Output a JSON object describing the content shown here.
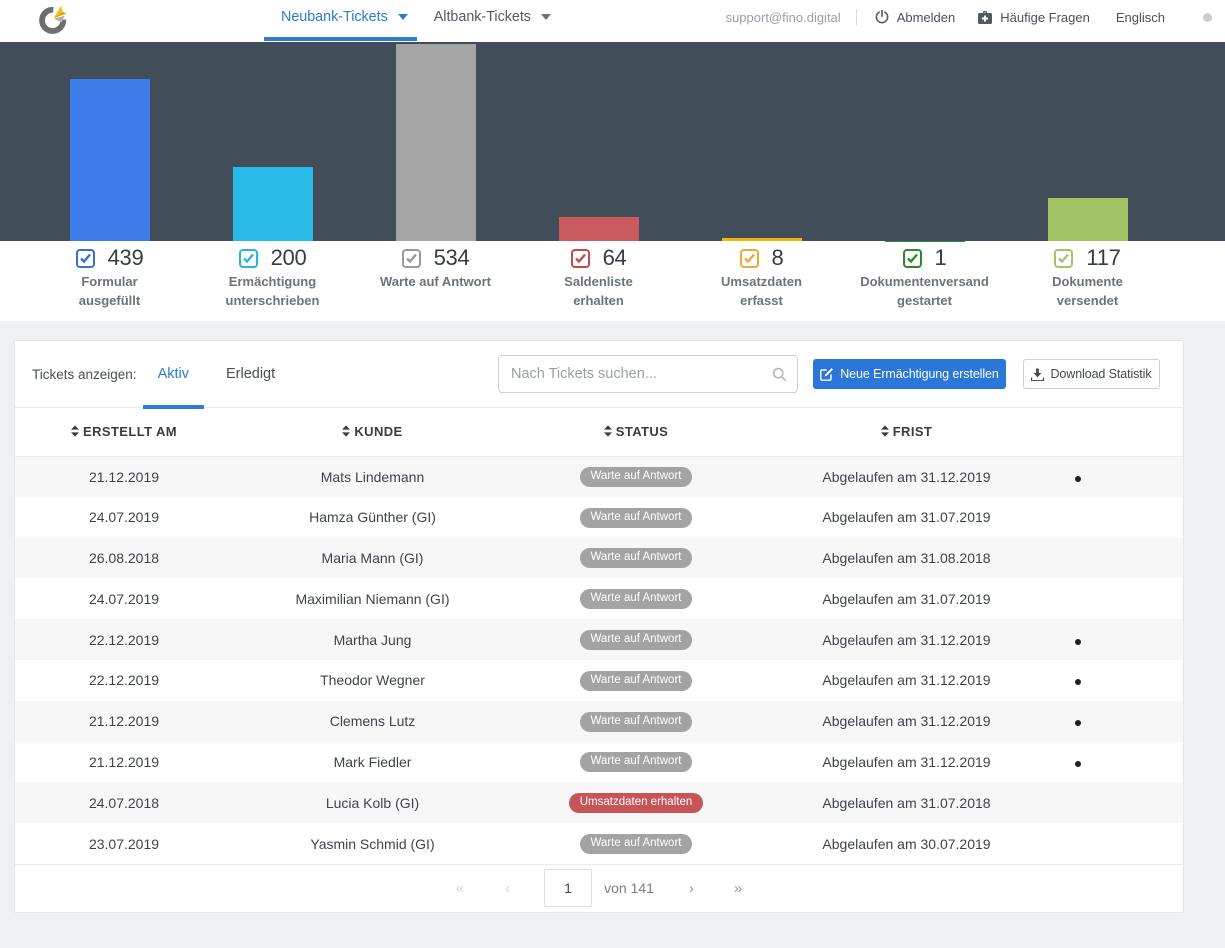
{
  "navbar": {
    "logo": "fino-logo",
    "tabs": [
      {
        "label": "Neubank-Tickets",
        "active": true
      },
      {
        "label": "Altbank-Tickets",
        "active": false
      }
    ],
    "user_email": "support@fino.digital",
    "logout_label": "Abmelden",
    "faq_label": "Häufige Fragen",
    "language_label": "Englisch"
  },
  "chart_data": {
    "type": "bar",
    "title": "",
    "xlabel": "",
    "ylabel": "",
    "ylim": [
      0,
      534
    ],
    "grid": false,
    "background": "#424d5a",
    "categories": [
      "Formular ausgefüllt",
      "Ermächtigung unterschrieben",
      "Warte auf Antwort",
      "Saldenliste erhalten",
      "Umsatzdaten erfasst",
      "Dokumentenversand gestartet",
      "Dokumente versendet"
    ],
    "values": [
      439,
      200,
      534,
      64,
      8,
      1,
      117
    ],
    "colors": [
      "#3e7de9",
      "#29bce8",
      "#a5a5a5",
      "#cb5a5e",
      "#f5b50a",
      "#2e8b37",
      "#a1c262"
    ],
    "legend": [
      {
        "count": "439",
        "lines": [
          "Formular",
          "ausgefüllt"
        ],
        "box_color": "#3a6fd8",
        "checked": true
      },
      {
        "count": "200",
        "lines": [
          "Ermächtigung",
          "unterschrieben"
        ],
        "box_color": "#2ab4e4",
        "checked": true
      },
      {
        "count": "534",
        "lines": [
          "Warte auf Antwort"
        ],
        "box_color": "#9a9a9a",
        "checked": true
      },
      {
        "count": "64",
        "lines": [
          "Saldenliste",
          "erhalten"
        ],
        "box_color": "#c2494f",
        "checked": true
      },
      {
        "count": "8",
        "lines": [
          "Umsatzdaten",
          "erfasst"
        ],
        "box_color": "#eda93c",
        "checked": true
      },
      {
        "count": "1",
        "lines": [
          "Dokumentenversand",
          "gestartet"
        ],
        "box_color": "#2c8a2c",
        "checked": true
      },
      {
        "count": "117",
        "lines": [
          "Dokumente",
          "versendet"
        ],
        "box_color": "#a4c36a",
        "checked": true
      }
    ]
  },
  "toolbar": {
    "label": "Tickets anzeigen:",
    "tabs": [
      {
        "label": "Aktiv",
        "active": true
      },
      {
        "label": "Erledigt",
        "active": false
      }
    ],
    "search_placeholder": "Nach Tickets suchen...",
    "search_value": "",
    "create_button": "Neue Ermächtigung erstellen",
    "download_button": "Download Statistik"
  },
  "table": {
    "columns": [
      "Erstellt am",
      "Kunde",
      "Status",
      "Frist"
    ],
    "status_colors": {
      "Warte auf Antwort": "#a3a3a3",
      "Umsatzdaten erhalten": "#c75457"
    },
    "rows": [
      {
        "erstellt_am": "21.12.2019",
        "kunde": "Mats Lindemann",
        "status": "Warte auf Antwort",
        "frist": "Abgelaufen am 31.12.2019",
        "dot": true
      },
      {
        "erstellt_am": "24.07.2019",
        "kunde": "Hamza Günther (GI)",
        "status": "Warte auf Antwort",
        "frist": "Abgelaufen am 31.07.2019",
        "dot": false
      },
      {
        "erstellt_am": "26.08.2018",
        "kunde": "Maria Mann (GI)",
        "status": "Warte auf Antwort",
        "frist": "Abgelaufen am 31.08.2018",
        "dot": false
      },
      {
        "erstellt_am": "24.07.2019",
        "kunde": "Maximilian Niemann (GI)",
        "status": "Warte auf Antwort",
        "frist": "Abgelaufen am 31.07.2019",
        "dot": false
      },
      {
        "erstellt_am": "22.12.2019",
        "kunde": "Martha Jung",
        "status": "Warte auf Antwort",
        "frist": "Abgelaufen am 31.12.2019",
        "dot": true
      },
      {
        "erstellt_am": "22.12.2019",
        "kunde": "Theodor Wegner",
        "status": "Warte auf Antwort",
        "frist": "Abgelaufen am 31.12.2019",
        "dot": true
      },
      {
        "erstellt_am": "21.12.2019",
        "kunde": "Clemens Lutz",
        "status": "Warte auf Antwort",
        "frist": "Abgelaufen am 31.12.2019",
        "dot": true
      },
      {
        "erstellt_am": "21.12.2019",
        "kunde": "Mark Fiedler",
        "status": "Warte auf Antwort",
        "frist": "Abgelaufen am 31.12.2019",
        "dot": true
      },
      {
        "erstellt_am": "24.07.2018",
        "kunde": "Lucia Kolb (GI)",
        "status": "Umsatzdaten erhalten",
        "frist": "Abgelaufen am 31.07.2018",
        "dot": false
      },
      {
        "erstellt_am": "23.07.2019",
        "kunde": "Yasmin Schmid (GI)",
        "status": "Warte auf Antwort",
        "frist": "Abgelaufen am 30.07.2019",
        "dot": false
      }
    ]
  },
  "pagination": {
    "first": "«",
    "prev": "‹",
    "page_value": "1",
    "of_label": "von 141",
    "next": "›",
    "last": "»"
  }
}
